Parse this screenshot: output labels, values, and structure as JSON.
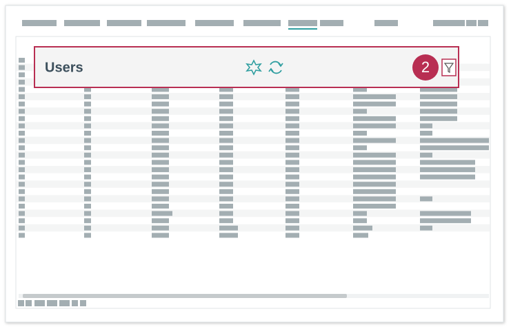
{
  "panel": {
    "title": "Users"
  },
  "badge": "2"
}
